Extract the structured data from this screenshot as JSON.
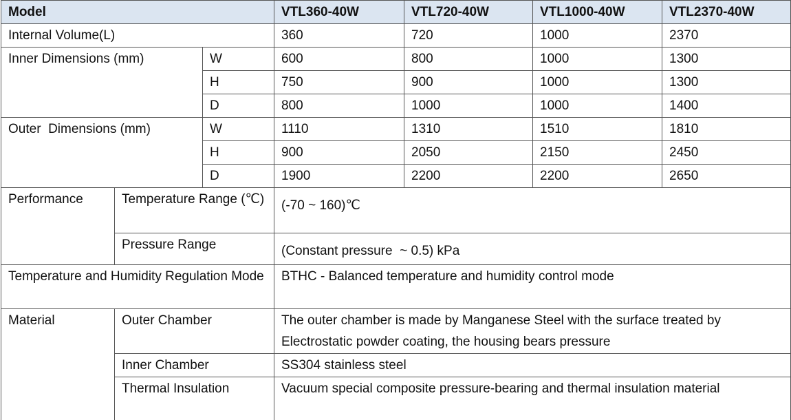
{
  "table": {
    "header": {
      "label": "Model",
      "models": [
        "VTL360-40W",
        "VTL720-40W",
        "VTL1000-40W",
        "VTL2370-40W"
      ]
    },
    "internal_volume": {
      "label": "Internal Volume(L)",
      "values": [
        360,
        720,
        1000,
        2370
      ]
    },
    "inner_dimensions": {
      "label": "Inner Dimensions (mm)",
      "rows": [
        {
          "axis": "W",
          "values": [
            600,
            800,
            1000,
            1300
          ]
        },
        {
          "axis": "H",
          "values": [
            750,
            900,
            1000,
            1300
          ]
        },
        {
          "axis": "D",
          "values": [
            800,
            1000,
            1000,
            1400
          ]
        }
      ]
    },
    "outer_dimensions": {
      "label": "Outer  Dimensions (mm)",
      "rows": [
        {
          "axis": "W",
          "values": [
            1110,
            1310,
            1510,
            1810
          ]
        },
        {
          "axis": "H",
          "values": [
            900,
            2050,
            2150,
            2450
          ]
        },
        {
          "axis": "D",
          "values": [
            1900,
            2200,
            2200,
            2650
          ]
        }
      ]
    },
    "performance": {
      "label": "Performance",
      "rows": [
        {
          "label": "Temperature Range (℃)",
          "value": "(-70 ~ 160)℃"
        },
        {
          "label": "Pressure Range",
          "value": "(Constant pressure  ~ 0.5) kPa"
        }
      ]
    },
    "regulation_mode": {
      "label": "Temperature and Humidity Regulation Mode",
      "value": "BTHC - Balanced temperature and humidity control mode"
    },
    "material": {
      "label": "Material",
      "rows": [
        {
          "label": "Outer Chamber",
          "value": "The outer chamber is made by Manganese Steel with the surface treated by Electrostatic powder coating, the housing bears pressure"
        },
        {
          "label": "Inner Chamber",
          "value": "SS304 stainless steel"
        },
        {
          "label": "Thermal Insulation",
          "value": "Vacuum special composite pressure-bearing and thermal insulation material"
        }
      ]
    }
  }
}
